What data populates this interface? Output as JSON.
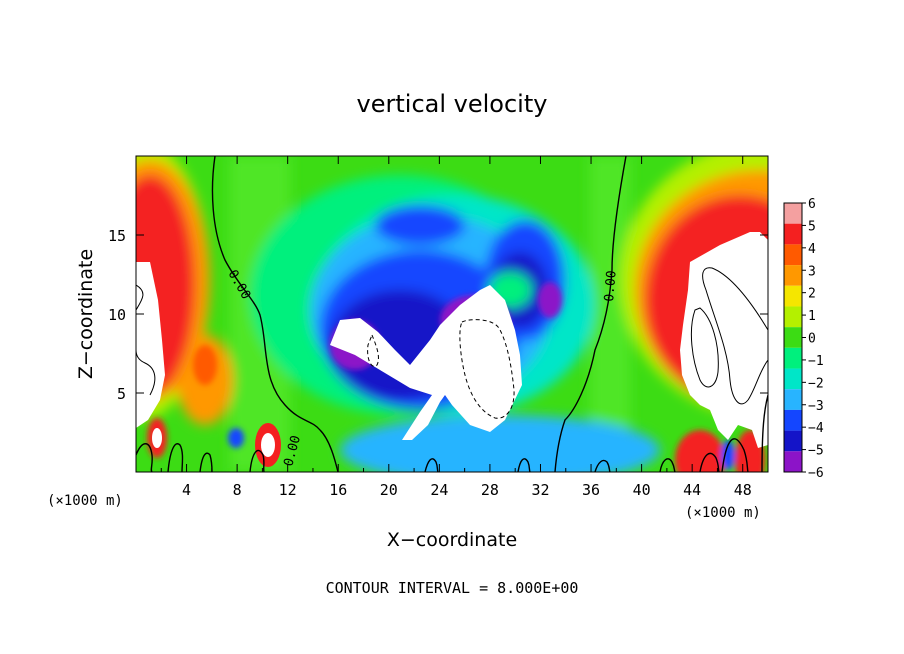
{
  "chart_data": {
    "type": "heatmap",
    "title": "vertical velocity",
    "xlabel": "X−coordinate",
    "ylabel": "Z−coordinate",
    "x_unit_left": "(×1000 m)",
    "x_unit_right": "(×1000 m)",
    "xlim": [
      0,
      50
    ],
    "ylim": [
      0,
      20
    ],
    "x_ticks": [
      4,
      8,
      12,
      16,
      20,
      24,
      28,
      32,
      36,
      40,
      44,
      48
    ],
    "y_ticks": [
      5,
      10,
      15
    ],
    "colorbar": {
      "labels": [
        "6",
        "5",
        "4",
        "3",
        "2",
        "1",
        "0",
        "−1",
        "−2",
        "−3",
        "−4",
        "−5",
        "−6"
      ],
      "range": [
        -6,
        6
      ],
      "colors_high_to_low": [
        "#f4a0a0",
        "#f42020",
        "#ff5a00",
        "#ff9800",
        "#f5e600",
        "#b4f000",
        "#3cdc14",
        "#00f07d",
        "#00e6c8",
        "#28b4ff",
        "#1446ff",
        "#1414c8",
        "#8c14c8"
      ]
    },
    "contour_label": "0.00",
    "footer": "CONTOUR INTERVAL = 8.000E+00",
    "features": [
      {
        "name": "left-updraft",
        "x": 1,
        "z": 9,
        "w": 8
      },
      {
        "name": "central-updraft",
        "x": 26,
        "z": 8,
        "w": 9
      },
      {
        "name": "right-updraft",
        "x": 46,
        "z": 9,
        "w": 8
      },
      {
        "name": "central-downdraft",
        "x": 24,
        "z": 10,
        "w": -5
      },
      {
        "name": "surface-cell",
        "x": 10,
        "z": 1.5,
        "w": 6
      }
    ]
  }
}
